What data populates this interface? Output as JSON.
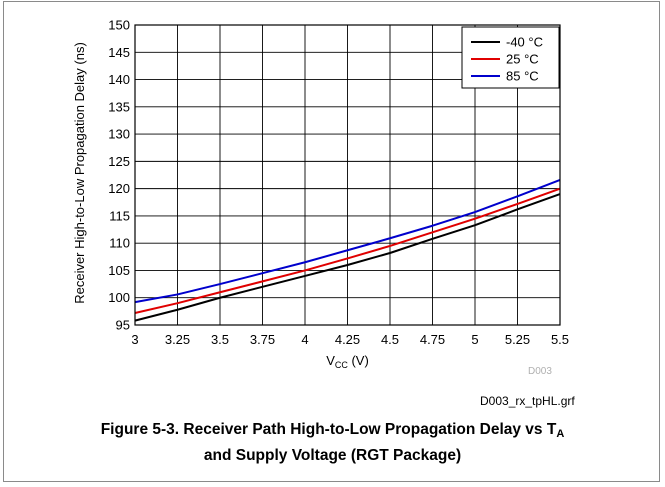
{
  "chart_data": {
    "type": "line",
    "xlabel": "V",
    "xlabel_sub": "CC",
    "xlabel_unit": " (V)",
    "ylabel": "Receiver High-to-Low Propagation Delay (ns)",
    "xlim": [
      3,
      5.5
    ],
    "ylim": [
      95,
      150
    ],
    "xticks": [
      3,
      3.25,
      3.5,
      3.75,
      4,
      4.25,
      4.5,
      4.75,
      5,
      5.25,
      5.5
    ],
    "xtick_labels": [
      "3",
      "3.25",
      "3.5",
      "3.75",
      "4",
      "4.25",
      "4.5",
      "4.75",
      "5",
      "5.25",
      "5.5"
    ],
    "yticks": [
      95,
      100,
      105,
      110,
      115,
      120,
      125,
      130,
      135,
      140,
      145,
      150
    ],
    "grid": true,
    "legend_position": "top-right",
    "annotation": "D003",
    "series": [
      {
        "name": "-40 °C",
        "color": "#000000",
        "x": [
          3,
          3.25,
          3.5,
          3.75,
          4,
          4.25,
          4.5,
          4.75,
          5,
          5.25,
          5.5
        ],
        "y": [
          95.8,
          97.8,
          100.0,
          102.0,
          104.0,
          106.0,
          108.2,
          110.8,
          113.3,
          116.2,
          119.0
        ]
      },
      {
        "name": "25 °C",
        "color": "#e00000",
        "x": [
          3,
          3.25,
          3.5,
          3.75,
          4,
          4.25,
          4.5,
          4.75,
          5,
          5.25,
          5.5
        ],
        "y": [
          97.2,
          99.0,
          101.0,
          103.0,
          105.0,
          107.2,
          109.5,
          112.0,
          114.5,
          117.2,
          120.0
        ]
      },
      {
        "name": "85 °C",
        "color": "#0000cc",
        "x": [
          3,
          3.25,
          3.5,
          3.75,
          4,
          4.25,
          4.5,
          4.75,
          5,
          5.25,
          5.5
        ],
        "y": [
          99.2,
          100.6,
          102.5,
          104.5,
          106.5,
          108.7,
          110.9,
          113.2,
          115.7,
          118.6,
          121.6
        ]
      }
    ]
  },
  "file_label": "D003_rx_tpHL.grf",
  "caption": {
    "line1_main": "Figure 5-3. Receiver Path High-to-Low Propagation Delay vs T",
    "line1_sub": "A",
    "line2": "and Supply Voltage (RGT Package)"
  }
}
